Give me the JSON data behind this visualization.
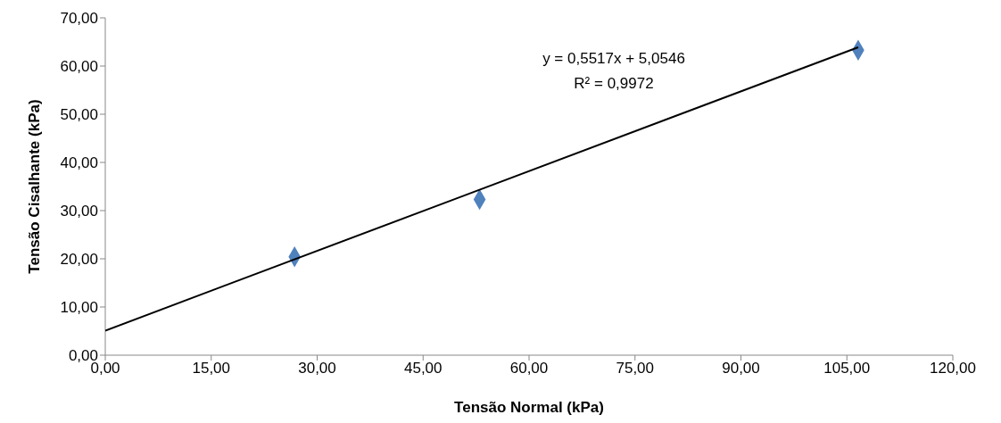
{
  "chart_data": {
    "type": "scatter",
    "xlabel": "Tensão Normal (kPa)",
    "ylabel": "Tensão Cisalhante (kPa)",
    "xlim": [
      0,
      120
    ],
    "ylim": [
      0,
      70
    ],
    "xticks": [
      {
        "value": 0,
        "label": "0,00"
      },
      {
        "value": 15,
        "label": "15,00"
      },
      {
        "value": 30,
        "label": "30,00"
      },
      {
        "value": 45,
        "label": "45,00"
      },
      {
        "value": 60,
        "label": "60,00"
      },
      {
        "value": 75,
        "label": "75,00"
      },
      {
        "value": 90,
        "label": "90,00"
      },
      {
        "value": 105,
        "label": "105,00"
      },
      {
        "value": 120,
        "label": "120,00"
      }
    ],
    "yticks": [
      {
        "value": 0,
        "label": "0,00"
      },
      {
        "value": 10,
        "label": "10,00"
      },
      {
        "value": 20,
        "label": "20,00"
      },
      {
        "value": 30,
        "label": "30,00"
      },
      {
        "value": 40,
        "label": "40,00"
      },
      {
        "value": 50,
        "label": "50,00"
      },
      {
        "value": 60,
        "label": "60,00"
      },
      {
        "value": 70,
        "label": "70,00"
      }
    ],
    "series": [
      {
        "color": "#4f81bd",
        "marker": "diamond",
        "x": [
          26.8,
          53.0,
          106.6
        ],
        "values": [
          20.4,
          32.3,
          63.3
        ]
      },
      {
        "type": "line",
        "color": "#000000",
        "marker": "none",
        "line_style": "solid",
        "x": [
          0,
          106.6
        ],
        "values": [
          5.1,
          63.9
        ]
      }
    ],
    "annotations": [
      "y = 0,5517x + 5,0546",
      "R² = 0,9972"
    ]
  }
}
